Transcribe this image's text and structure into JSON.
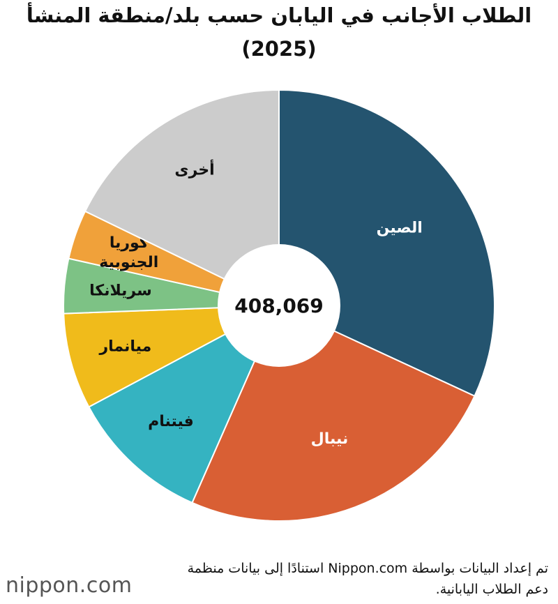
{
  "chart_data": {
    "type": "donut",
    "title": "الطلاب الأجانب في اليابان حسب بلد/منطقة المنشأ",
    "subtitle": "(2025)",
    "center_label": "408,069",
    "categories": [
      "الصين",
      "نيبال",
      "فيتنام",
      "ميانمار",
      "سريلانكا",
      "كوريا الجنوبية",
      "أخرى"
    ],
    "values": [
      31.9,
      24.7,
      10.6,
      7.2,
      4.1,
      3.7,
      17.8
    ],
    "colors": [
      "#24546f",
      "#d95f34",
      "#35b3c1",
      "#f0bb1b",
      "#7dc285",
      "#f0a13a",
      "#cccccc"
    ],
    "label_colors": [
      "#ffffff",
      "#ffffff",
      "#111111",
      "#111111",
      "#111111",
      "#111111",
      "#111111"
    ],
    "source": "تم إعداد البيانات بواسطة Nippon.com استنادًا إلى بيانات منظمة دعم الطلاب اليابانية.",
    "logo": "nippon.com"
  }
}
